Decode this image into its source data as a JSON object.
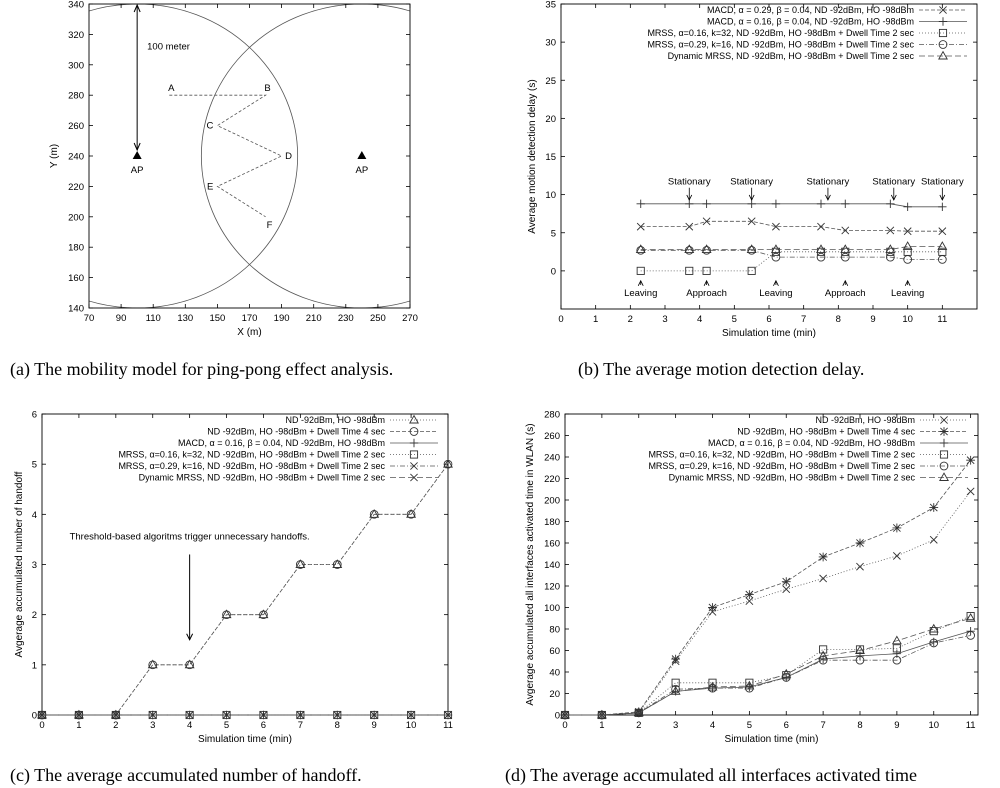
{
  "chart_data": [
    {
      "type": "scatter",
      "caption": "(a) The mobility model for ping-pong effect analysis.",
      "xlabel": "X (m)",
      "ylabel": "Y (m)",
      "xlim": [
        70,
        270
      ],
      "ylim": [
        140,
        340
      ],
      "xticks": [
        "70",
        "90",
        "110",
        "130",
        "150",
        "170",
        "190",
        "210",
        "230",
        "250",
        "270"
      ],
      "yticks": [
        "140",
        "160",
        "180",
        "200",
        "220",
        "240",
        "260",
        "280",
        "300",
        "320",
        "340"
      ],
      "grid": false,
      "aps": [
        {
          "label": "AP",
          "x": 100,
          "y": 240
        },
        {
          "label": "AP",
          "x": 240,
          "y": 240
        }
      ],
      "coverage_radius": 100,
      "radius_label": "100 meter",
      "path": [
        {
          "label": "A",
          "x": 120,
          "y": 280
        },
        {
          "label": "B",
          "x": 180,
          "y": 280
        },
        {
          "label": "C",
          "x": 150,
          "y": 260
        },
        {
          "label": "D",
          "x": 190,
          "y": 240
        },
        {
          "label": "E",
          "x": 150,
          "y": 220
        },
        {
          "label": "F",
          "x": 180,
          "y": 200
        }
      ]
    },
    {
      "type": "line",
      "caption": "(b) The average motion detection delay.",
      "xlabel": "Simulation time (min)",
      "ylabel": "Average motion detection delay (s)",
      "xlim": [
        0,
        12
      ],
      "ylim": [
        -5,
        35
      ],
      "xticks": [
        "0",
        "1",
        "2",
        "3",
        "4",
        "5",
        "6",
        "7",
        "8",
        "9",
        "10",
        "11"
      ],
      "yticks": [
        "0",
        "5",
        "10",
        "15",
        "20",
        "25",
        "30",
        "35"
      ],
      "legend": "top-right",
      "series": [
        {
          "name": "MACD, α = 0.29, β = 0.04, ND -92dBm, HO -98dBm",
          "marker": "x",
          "dash": "4,2",
          "x": [
            2.3,
            3.7,
            4.2,
            5.5,
            6.2,
            7.5,
            8.2,
            9.5,
            10,
            11
          ],
          "y": [
            5.8,
            5.8,
            6.5,
            6.5,
            5.8,
            5.8,
            5.3,
            5.3,
            5.2,
            5.2
          ]
        },
        {
          "name": "MACD, α = 0.16, β = 0.04, ND -92dBm, HO -98dBm",
          "marker": "plus",
          "dash": "",
          "x": [
            2.3,
            3.7,
            4.2,
            5.5,
            6.2,
            7.5,
            8.2,
            9.5,
            10,
            11
          ],
          "y": [
            8.8,
            8.8,
            8.8,
            8.8,
            8.8,
            8.8,
            8.8,
            8.8,
            8.4,
            8.4
          ]
        },
        {
          "name": "MRSS, α=0.16, k=32, ND -92dBm, HO -98dBm + Dwell Time 2 sec",
          "marker": "square",
          "dash": "1,2",
          "x": [
            2.3,
            3.7,
            4.2,
            5.5,
            6.2,
            7.5,
            8.2,
            9.5,
            10,
            11
          ],
          "y": [
            0,
            0,
            0,
            0,
            2.5,
            2.5,
            2.5,
            2.5,
            2.5,
            2.5
          ]
        },
        {
          "name": "MRSS, α=0.29, k=16, ND -92dBm, HO -98dBm + Dwell Time 2 sec",
          "marker": "circle",
          "dash": "5,2,1,2",
          "x": [
            2.3,
            3.7,
            4.2,
            5.5,
            6.2,
            7.5,
            8.2,
            9.5,
            10,
            11
          ],
          "y": [
            2.7,
            2.7,
            2.7,
            2.7,
            1.8,
            1.8,
            1.8,
            1.8,
            1.5,
            1.5
          ]
        },
        {
          "name": "Dynamic MRSS, ND -92dBm, HO -98dBm + Dwell Time 2 sec",
          "marker": "triangle",
          "dash": "6,3",
          "x": [
            2.3,
            3.7,
            4.2,
            5.5,
            6.2,
            7.5,
            8.2,
            9.5,
            10,
            11
          ],
          "y": [
            2.8,
            2.8,
            2.8,
            2.8,
            2.8,
            2.8,
            2.8,
            2.8,
            3.2,
            3.2
          ]
        }
      ],
      "annotations": [
        {
          "text": "Stationary",
          "x": 3.7,
          "y": 11.3,
          "arrow_to": 9.3
        },
        {
          "text": "Stationary",
          "x": 5.5,
          "y": 11.3,
          "arrow_to": 9.3
        },
        {
          "text": "Stationary",
          "x": 7.7,
          "y": 11.3,
          "arrow_to": 9.3
        },
        {
          "text": "Stationary",
          "x": 9.6,
          "y": 11.3,
          "arrow_to": 9.3
        },
        {
          "text": "Stationary",
          "x": 11,
          "y": 11.3,
          "arrow_to": 9.3
        },
        {
          "text": "Leaving",
          "x": 2.3,
          "y": -3.3,
          "arrow_to": -1.3
        },
        {
          "text": "Approach",
          "x": 4.2,
          "y": -3.3,
          "arrow_to": -1.3
        },
        {
          "text": "Leaving",
          "x": 6.2,
          "y": -3.3,
          "arrow_to": -1.3
        },
        {
          "text": "Approach",
          "x": 8.2,
          "y": -3.3,
          "arrow_to": -1.3
        },
        {
          "text": "Leaving",
          "x": 10,
          "y": -3.3,
          "arrow_to": -1.3
        }
      ]
    },
    {
      "type": "line",
      "caption": "(c) The average accumulated number of handoff.",
      "xlabel": "Simulation time (min)",
      "ylabel": "Avgerage accumulated number of handoff",
      "xlim": [
        0,
        11
      ],
      "ylim": [
        0,
        6
      ],
      "xticks": [
        "0",
        "1",
        "2",
        "3",
        "4",
        "5",
        "6",
        "7",
        "8",
        "9",
        "10",
        "11"
      ],
      "yticks": [
        "0",
        "1",
        "2",
        "3",
        "4",
        "5",
        "6"
      ],
      "legend": "top-right",
      "series": [
        {
          "name": "ND -92dBm, HO -98dBm",
          "marker": "triangle",
          "dash": "1,2",
          "x": [
            0,
            1,
            2,
            3,
            4,
            5,
            6,
            7,
            8,
            9,
            10,
            11
          ],
          "y": [
            0,
            0,
            0,
            1,
            1,
            2,
            2,
            3,
            3,
            4,
            4,
            5
          ]
        },
        {
          "name": "ND -92dBm, HO -98dBm + Dwell Time 4 sec",
          "marker": "circle",
          "dash": "4,2",
          "x": [
            0,
            1,
            2,
            3,
            4,
            5,
            6,
            7,
            8,
            9,
            10,
            11
          ],
          "y": [
            0,
            0,
            0,
            1,
            1,
            2,
            2,
            3,
            3,
            4,
            4,
            5
          ]
        },
        {
          "name": "MACD, α = 0.16, β = 0.04, ND -92dBm, HO -98dBm",
          "marker": "plus",
          "dash": "",
          "x": [
            0,
            1,
            2,
            3,
            4,
            5,
            6,
            7,
            8,
            9,
            10,
            11
          ],
          "y": [
            0,
            0,
            0,
            0,
            0,
            0,
            0,
            0,
            0,
            0,
            0,
            0
          ]
        },
        {
          "name": "MRSS, α=0.16, k=32, ND -92dBm, HO -98dBm + Dwell Time 2 sec",
          "marker": "square",
          "dash": "1,2",
          "x": [
            0,
            1,
            2,
            3,
            4,
            5,
            6,
            7,
            8,
            9,
            10,
            11
          ],
          "y": [
            0,
            0,
            0,
            0,
            0,
            0,
            0,
            0,
            0,
            0,
            0,
            0
          ]
        },
        {
          "name": "MRSS, α=0.29, k=16, ND -92dBm, HO -98dBm + Dwell Time 2 sec",
          "marker": "x",
          "dash": "5,2,1,2",
          "x": [
            0,
            1,
            2,
            3,
            4,
            5,
            6,
            7,
            8,
            9,
            10,
            11
          ],
          "y": [
            0,
            0,
            0,
            0,
            0,
            0,
            0,
            0,
            0,
            0,
            0,
            0
          ]
        },
        {
          "name": "Dynamic MRSS, ND -92dBm, HO -98dBm + Dwell Time 2 sec",
          "marker": "x",
          "dash": "6,3",
          "x": [
            0,
            1,
            2,
            3,
            4,
            5,
            6,
            7,
            8,
            9,
            10,
            11
          ],
          "y": [
            0,
            0,
            0,
            0,
            0,
            0,
            0,
            0,
            0,
            0,
            0,
            0
          ]
        }
      ],
      "annotations": [
        {
          "text": "Threshold-based algoritms trigger unnecessary handoffs.",
          "x": 4,
          "y": 3.5,
          "arrow_from": 3.2,
          "arrow_to": 1.5
        }
      ]
    },
    {
      "type": "line",
      "caption": "(d) The average accumulated all interfaces activated time",
      "xlabel": "Simulation time (min)",
      "ylabel": "Avgerage accumulated all interfaces activated time in WLAN (s)",
      "xlim": [
        0,
        11.2
      ],
      "ylim": [
        0,
        280
      ],
      "xticks": [
        "0",
        "1",
        "2",
        "3",
        "4",
        "5",
        "6",
        "7",
        "8",
        "9",
        "10",
        "11"
      ],
      "yticks": [
        "0",
        "20",
        "40",
        "60",
        "80",
        "100",
        "120",
        "140",
        "160",
        "180",
        "200",
        "220",
        "240",
        "260",
        "280"
      ],
      "legend": "top-right",
      "series": [
        {
          "name": "ND -92dBm, HO -98dBm",
          "marker": "x",
          "dash": "1,2",
          "x": [
            0,
            1,
            2,
            3,
            4,
            5,
            6,
            7,
            8,
            9,
            10,
            11
          ],
          "y": [
            0,
            0,
            2,
            50,
            96,
            106,
            117,
            127,
            138,
            148,
            163,
            208
          ]
        },
        {
          "name": "ND -92dBm, HO -98dBm + Dwell Time 4 sec",
          "marker": "star",
          "dash": "4,2",
          "x": [
            0,
            1,
            2,
            3,
            4,
            5,
            6,
            7,
            8,
            9,
            10,
            11
          ],
          "y": [
            0,
            0,
            3,
            52,
            100,
            112,
            124,
            147,
            160,
            174,
            193,
            237
          ]
        },
        {
          "name": "MACD, α = 0.16, β = 0.04, ND -92dBm, HO -98dBm",
          "marker": "plus",
          "dash": "",
          "x": [
            0,
            1,
            2,
            3,
            4,
            5,
            6,
            7,
            8,
            9,
            10,
            11
          ],
          "y": [
            0,
            0,
            2,
            22,
            25,
            26,
            35,
            52,
            55,
            57,
            68,
            78
          ]
        },
        {
          "name": "MRSS, α=0.16, k=32, ND -92dBm, HO -98dBm + Dwell Time 2 sec",
          "marker": "square",
          "dash": "1,2",
          "x": [
            0,
            1,
            2,
            3,
            4,
            5,
            6,
            7,
            8,
            9,
            10,
            11
          ],
          "y": [
            0,
            0,
            2,
            30,
            30,
            30,
            37,
            61,
            61,
            62,
            78,
            92
          ]
        },
        {
          "name": "MRSS, α=0.29, k=16, ND -92dBm, HO -98dBm + Dwell Time 2 sec",
          "marker": "circle",
          "dash": "5,2,1,2",
          "x": [
            0,
            1,
            2,
            3,
            4,
            5,
            6,
            7,
            8,
            9,
            10,
            11
          ],
          "y": [
            0,
            0,
            2,
            24,
            25,
            25,
            35,
            51,
            51,
            51,
            67,
            74
          ]
        },
        {
          "name": "Dynamic MRSS, ND -92dBm, HO -98dBm + Dwell Time 2 sec",
          "marker": "triangle",
          "dash": "6,3",
          "x": [
            0,
            1,
            2,
            3,
            4,
            5,
            6,
            7,
            8,
            9,
            10,
            11
          ],
          "y": [
            0,
            0,
            2,
            22,
            26,
            27,
            38,
            55,
            60,
            69,
            80,
            90
          ]
        }
      ]
    }
  ]
}
